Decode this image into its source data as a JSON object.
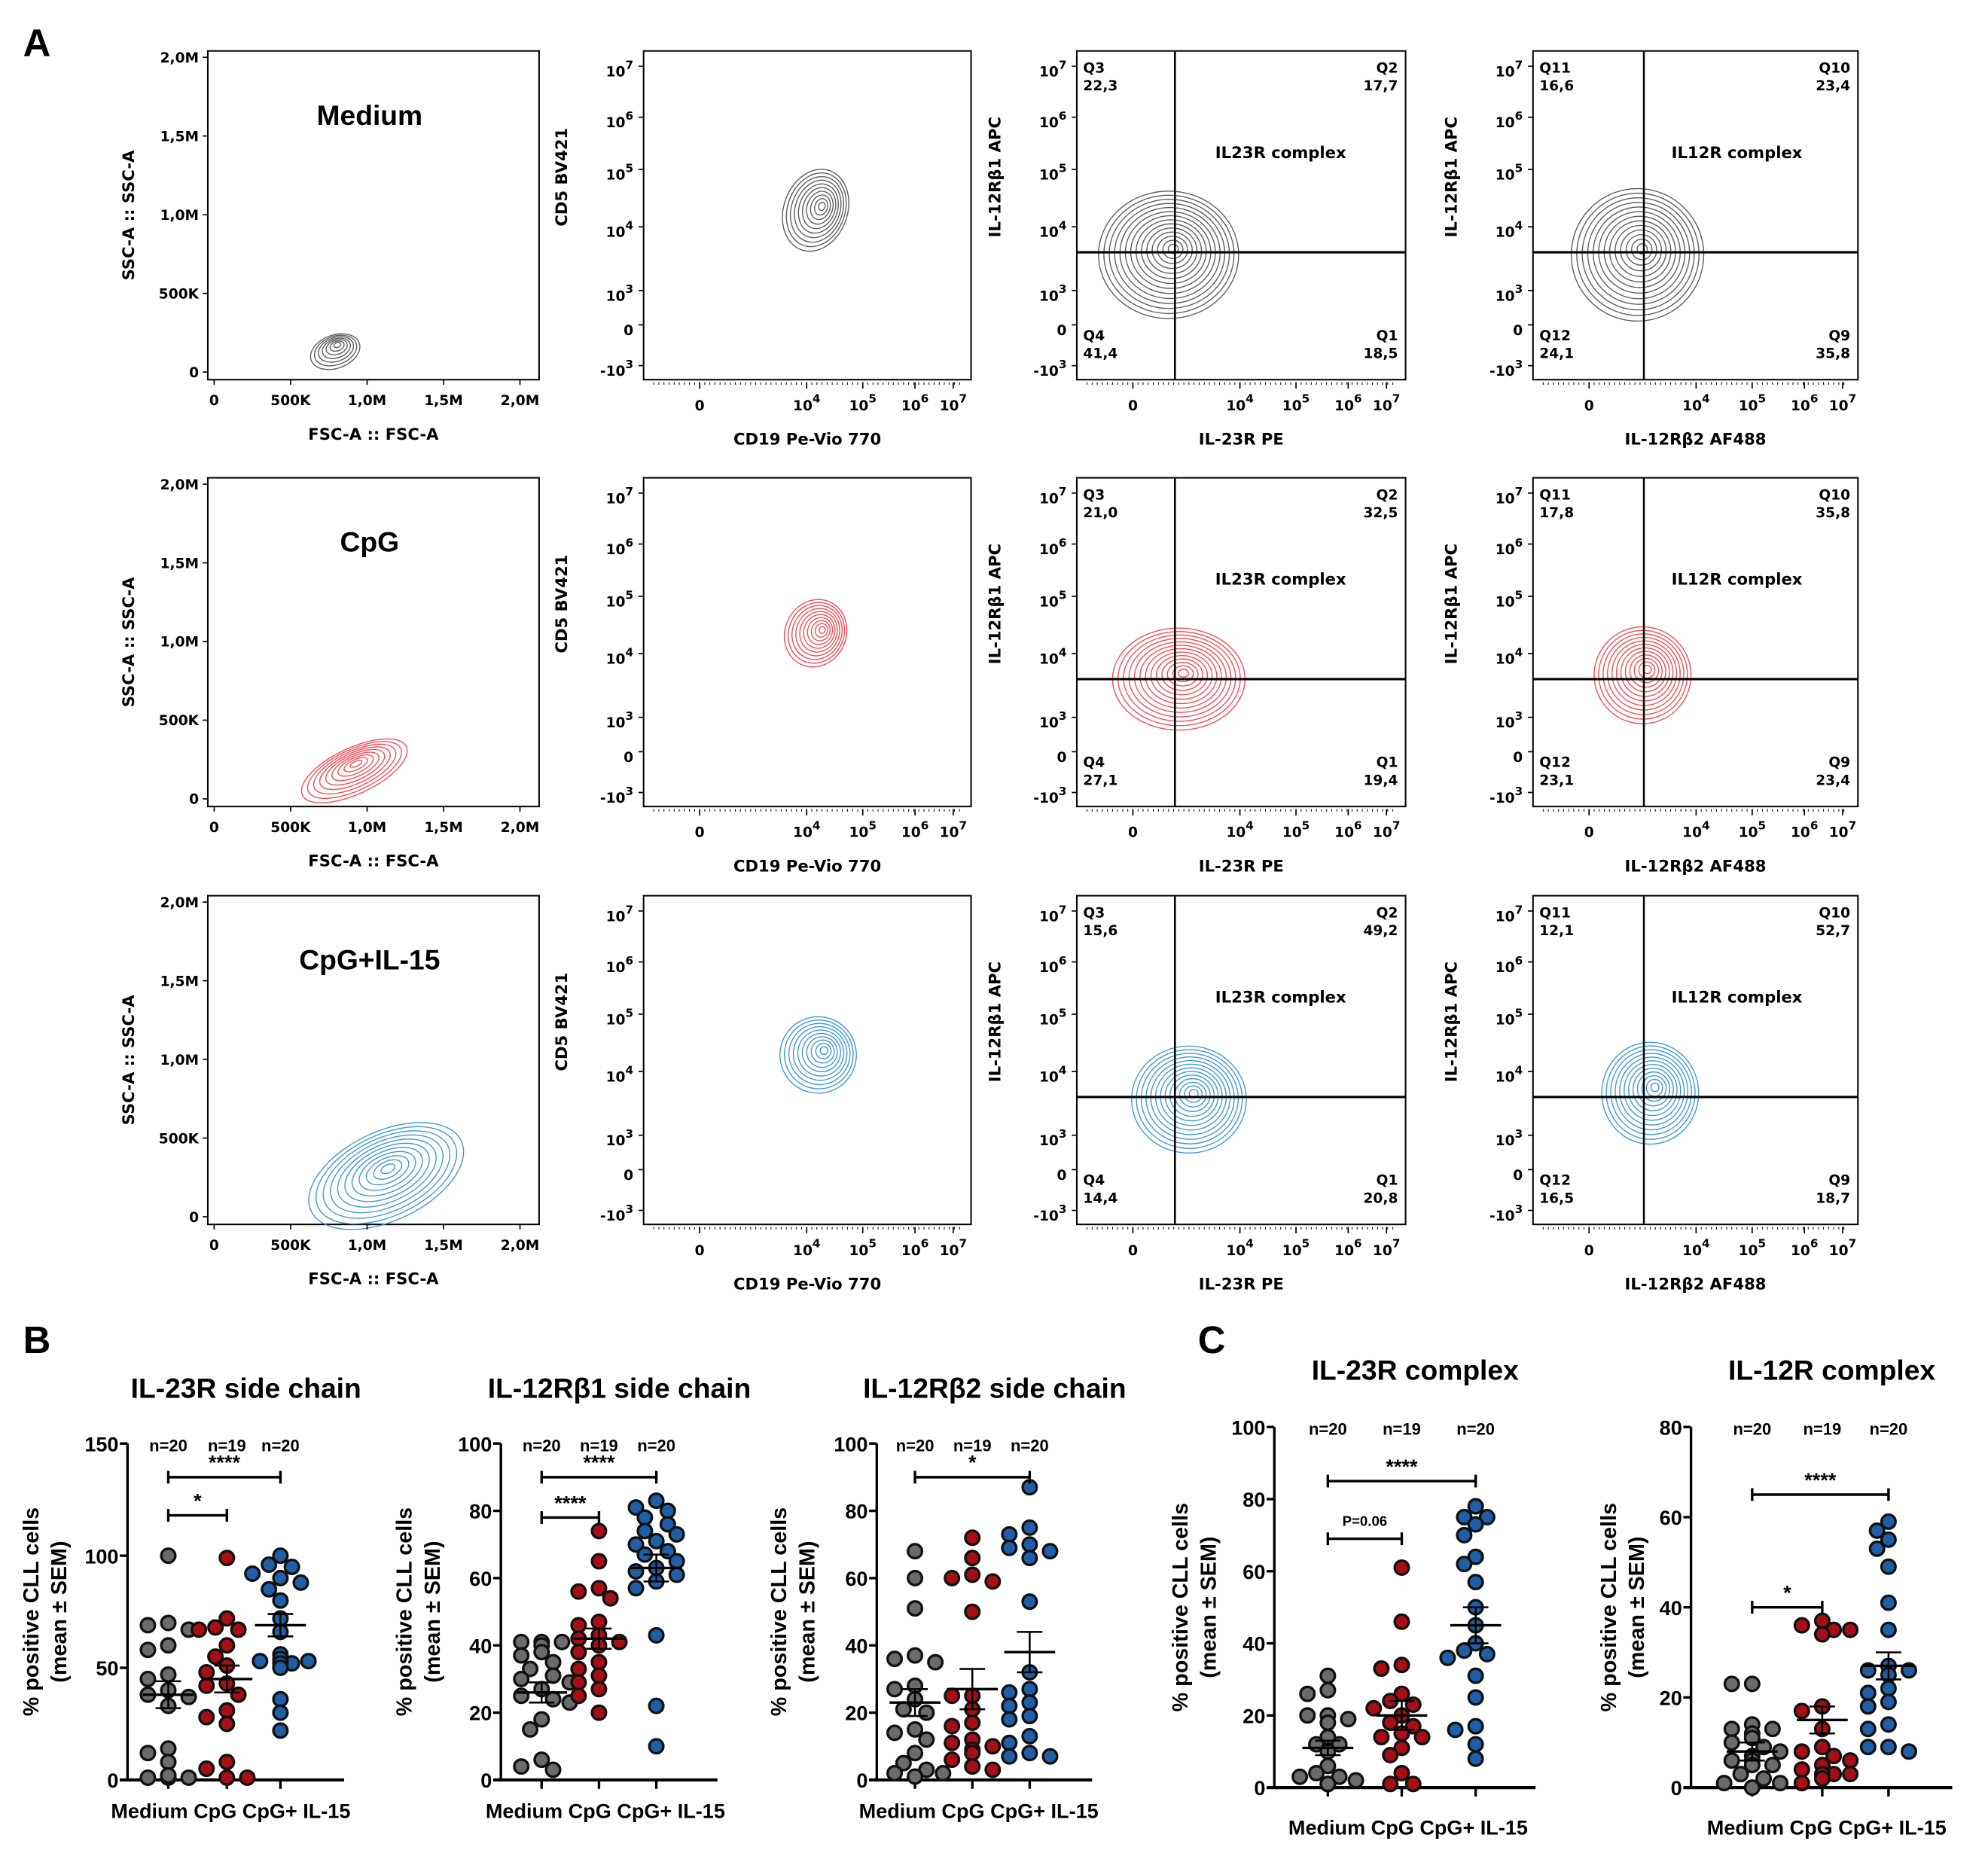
{
  "panel_labels": {
    "A": "A",
    "B": "B",
    "C": "C"
  },
  "flow": {
    "colors": {
      "Medium": "#5a5a5a",
      "CpG": "#f04a50",
      "CpG+IL-15": "#3a96d6"
    },
    "scatter_axes": {
      "x_label": "FSC-A :: FSC-A",
      "y_label": "SSC-A :: SSC-A",
      "x_ticks": [
        "0",
        "500K",
        "1,0M",
        "1,5M",
        "2,0M"
      ],
      "y_ticks": [
        "2,0M",
        "1,5M",
        "1,0M",
        "500K",
        "0"
      ]
    },
    "log_ticks_y": [
      [
        "10",
        "7"
      ],
      [
        "10",
        "6"
      ],
      [
        "10",
        "5"
      ],
      [
        "10",
        "4"
      ],
      [
        "10",
        "3"
      ],
      [
        "0",
        ""
      ],
      [
        "-10",
        "3"
      ]
    ],
    "log_ticks_x": [
      [
        "0",
        ""
      ],
      [
        "10",
        "4"
      ],
      [
        "10",
        "5"
      ],
      [
        "10",
        "6"
      ],
      [
        "10",
        "7"
      ]
    ],
    "cd_axes": {
      "x_label": "CD19 Pe-Vio 770",
      "y_label": "CD5 BV421"
    },
    "il23_axes": {
      "x_label": "IL-23R PE",
      "y_label": "IL-12Rβ1 APC",
      "gate_label": "IL23R complex"
    },
    "il12_axes": {
      "x_label": "IL-12Rβ2 AF488",
      "y_label": "IL-12Rβ1 APC",
      "gate_label": "IL12R complex"
    },
    "rows": [
      {
        "condition": "Medium",
        "il23_quadrants": [
          {
            "name": "Q3",
            "value": "22,3"
          },
          {
            "name": "Q2",
            "value": "17,7"
          },
          {
            "name": "Q4",
            "value": "41,4"
          },
          {
            "name": "Q1",
            "value": "18,5"
          }
        ],
        "il12_quadrants": [
          {
            "name": "Q11",
            "value": "16,6"
          },
          {
            "name": "Q10",
            "value": "23,4"
          },
          {
            "name": "Q12",
            "value": "24,1"
          },
          {
            "name": "Q9",
            "value": "35,8"
          }
        ]
      },
      {
        "condition": "CpG",
        "il23_quadrants": [
          {
            "name": "Q3",
            "value": "21,0"
          },
          {
            "name": "Q2",
            "value": "32,5"
          },
          {
            "name": "Q4",
            "value": "27,1"
          },
          {
            "name": "Q1",
            "value": "19,4"
          }
        ],
        "il12_quadrants": [
          {
            "name": "Q11",
            "value": "17,8"
          },
          {
            "name": "Q10",
            "value": "35,8"
          },
          {
            "name": "Q12",
            "value": "23,1"
          },
          {
            "name": "Q9",
            "value": "23,4"
          }
        ]
      },
      {
        "condition": "CpG+IL-15",
        "il23_quadrants": [
          {
            "name": "Q3",
            "value": "15,6"
          },
          {
            "name": "Q2",
            "value": "49,2"
          },
          {
            "name": "Q4",
            "value": "14,4"
          },
          {
            "name": "Q1",
            "value": "20,8"
          }
        ],
        "il12_quadrants": [
          {
            "name": "Q11",
            "value": "12,1"
          },
          {
            "name": "Q10",
            "value": "52,7"
          },
          {
            "name": "Q12",
            "value": "16,5"
          },
          {
            "name": "Q9",
            "value": "18,7"
          }
        ]
      }
    ]
  },
  "chart_data": [
    {
      "type": "scatter",
      "panel": "B",
      "title": "IL-23R side chain",
      "ylabel": [
        "% positive CLL cells",
        "(mean ± SEM)"
      ],
      "ylim": [
        0,
        150
      ],
      "yticks": [
        "0",
        "50",
        "100",
        "150"
      ],
      "categories": [
        "Medium",
        "CpG",
        "CpG+ IL-15"
      ],
      "n_labels": [
        "n=20",
        "n=19",
        "n=20"
      ],
      "colors": [
        "#6b6b6b",
        "#a50f15",
        "#1f5fa8"
      ],
      "series": [
        {
          "values": [
            100,
            70,
            69,
            67,
            60,
            58,
            47,
            45,
            40,
            38,
            37,
            33,
            14,
            12,
            8,
            2,
            1,
            1,
            1,
            2
          ],
          "mean": 38,
          "sem": 6
        },
        {
          "values": [
            99,
            72,
            68,
            67,
            67,
            60,
            55,
            51,
            48,
            43,
            42,
            38,
            31,
            28,
            25,
            8,
            5,
            1,
            1
          ],
          "mean": 45,
          "sem": 6
        },
        {
          "values": [
            100,
            96,
            95,
            92,
            90,
            88,
            85,
            80,
            72,
            66,
            56,
            53,
            52,
            53,
            54,
            52,
            50,
            36,
            30,
            22
          ],
          "mean": 69,
          "sem": 5
        }
      ],
      "significance": [
        {
          "from": 0,
          "to": 1,
          "y": 118,
          "label": "*"
        },
        {
          "from": 0,
          "to": 2,
          "y": 135,
          "label": "****"
        }
      ]
    },
    {
      "type": "scatter",
      "panel": "B",
      "title": "IL-12Rβ1 side chain",
      "ylabel": [
        "% positive CLL cells",
        "(mean ± SEM)"
      ],
      "ylim": [
        0,
        100
      ],
      "yticks": [
        "0",
        "20",
        "40",
        "60",
        "80",
        "100"
      ],
      "categories": [
        "Medium",
        "CpG",
        "CpG+ IL-15"
      ],
      "n_labels": [
        "n=20",
        "n=19",
        "n=20"
      ],
      "colors": [
        "#6b6b6b",
        "#a50f15",
        "#1f5fa8"
      ],
      "series": [
        {
          "values": [
            41,
            41,
            41,
            40,
            38,
            37,
            35,
            33,
            31,
            30,
            29,
            27,
            25,
            24,
            23,
            18,
            15,
            6,
            4,
            3
          ],
          "mean": 26,
          "sem": 3
        },
        {
          "values": [
            74,
            65,
            57,
            56,
            54,
            47,
            46,
            43,
            42,
            41,
            40,
            38,
            35,
            33,
            31,
            29,
            27,
            25,
            20
          ],
          "mean": 42,
          "sem": 3
        },
        {
          "values": [
            83,
            81,
            80,
            78,
            76,
            74,
            73,
            71,
            70,
            68,
            67,
            65,
            63,
            62,
            61,
            59,
            57,
            43,
            22,
            10
          ],
          "mean": 63,
          "sem": 4
        }
      ],
      "significance": [
        {
          "from": 0,
          "to": 1,
          "y": 78,
          "label": "****"
        },
        {
          "from": 0,
          "to": 2,
          "y": 90,
          "label": "****"
        }
      ]
    },
    {
      "type": "scatter",
      "panel": "B",
      "title": "IL-12Rβ2 side chain",
      "ylabel": [
        "% positive CLL cells",
        "(mean ± SEM)"
      ],
      "ylim": [
        0,
        100
      ],
      "yticks": [
        "0",
        "20",
        "40",
        "60",
        "80",
        "100"
      ],
      "categories": [
        "Medium",
        "CpG",
        "CpG+ IL-15"
      ],
      "n_labels": [
        "n=20",
        "n=19",
        "n=20"
      ],
      "colors": [
        "#6b6b6b",
        "#a50f15",
        "#1f5fa8"
      ],
      "series": [
        {
          "values": [
            68,
            60,
            51,
            37,
            36,
            35,
            28,
            27,
            24,
            21,
            20,
            15,
            14,
            12,
            8,
            5,
            3,
            2,
            2,
            1
          ],
          "mean": 23,
          "sem": 4
        },
        {
          "values": [
            72,
            66,
            61,
            60,
            59,
            50,
            25,
            25,
            21,
            17,
            16,
            12,
            11,
            10,
            9,
            8,
            6,
            4,
            3
          ],
          "mean": 27,
          "sem": 6
        },
        {
          "values": [
            87,
            75,
            73,
            70,
            69,
            68,
            66,
            53,
            32,
            27,
            26,
            23,
            22,
            19,
            18,
            13,
            11,
            8,
            7,
            7
          ],
          "mean": 38,
          "sem": 6
        }
      ],
      "significance": [
        {
          "from": 0,
          "to": 2,
          "y": 90,
          "label": "*"
        }
      ]
    },
    {
      "type": "scatter",
      "panel": "C",
      "title": "IL-23R complex",
      "ylabel": [
        "% positive CLL cells",
        "(mean ± SEM)"
      ],
      "ylim": [
        0,
        100
      ],
      "yticks": [
        "0",
        "20",
        "40",
        "60",
        "80",
        "100"
      ],
      "categories": [
        "Medium",
        "CpG",
        "CpG+ IL-15"
      ],
      "n_labels": [
        "n=20",
        "n=19",
        "n=20"
      ],
      "colors": [
        "#6b6b6b",
        "#a50f15",
        "#1f5fa8"
      ],
      "series": [
        {
          "values": [
            31,
            27,
            26,
            20,
            20,
            19,
            18,
            14,
            12,
            12,
            10,
            6,
            4,
            3,
            3,
            2,
            1,
            1,
            1,
            1
          ],
          "mean": 11,
          "sem": 2
        },
        {
          "values": [
            61,
            46,
            34,
            33,
            26,
            24,
            23,
            22,
            20,
            18,
            17,
            15,
            14,
            14,
            11,
            9,
            4,
            1,
            1
          ],
          "mean": 20,
          "sem": 4
        },
        {
          "values": [
            78,
            75,
            75,
            73,
            70,
            64,
            62,
            57,
            50,
            45,
            40,
            38,
            37,
            36,
            31,
            25,
            17,
            16,
            12,
            8
          ],
          "mean": 45,
          "sem": 5
        }
      ],
      "significance": [
        {
          "from": 0,
          "to": 1,
          "y": 69,
          "label": "P=0.06"
        },
        {
          "from": 0,
          "to": 2,
          "y": 85,
          "label": "****"
        }
      ]
    },
    {
      "type": "scatter",
      "panel": "C",
      "title": "IL-12R complex",
      "ylabel": [
        "% positive CLL cells",
        "(mean ± SEM)"
      ],
      "ylim": [
        0,
        80
      ],
      "yticks": [
        "0",
        "20",
        "40",
        "60",
        "80"
      ],
      "categories": [
        "Medium",
        "CpG",
        "CpG+ IL-15"
      ],
      "n_labels": [
        "n=20",
        "n=19",
        "n=20"
      ],
      "colors": [
        "#6b6b6b",
        "#a50f15",
        "#1f5fa8"
      ],
      "series": [
        {
          "values": [
            23,
            23,
            14,
            13,
            13,
            12,
            11,
            10,
            9,
            8,
            7,
            6,
            6,
            5,
            5,
            3,
            2,
            1,
            1,
            0
          ],
          "mean": 8,
          "sem": 2
        },
        {
          "values": [
            37,
            36,
            35,
            35,
            34,
            18,
            17,
            13,
            9,
            8,
            7,
            6,
            5,
            4,
            3,
            3,
            3,
            2,
            1
          ],
          "mean": 15,
          "sem": 3
        },
        {
          "values": [
            59,
            57,
            55,
            53,
            49,
            41,
            35,
            27,
            26,
            26,
            25,
            22,
            21,
            19,
            18,
            14,
            13,
            9,
            9,
            8
          ],
          "mean": 27,
          "sem": 3
        }
      ],
      "significance": [
        {
          "from": 0,
          "to": 1,
          "y": 40,
          "label": "*"
        },
        {
          "from": 0,
          "to": 2,
          "y": 65,
          "label": "****"
        }
      ]
    }
  ]
}
